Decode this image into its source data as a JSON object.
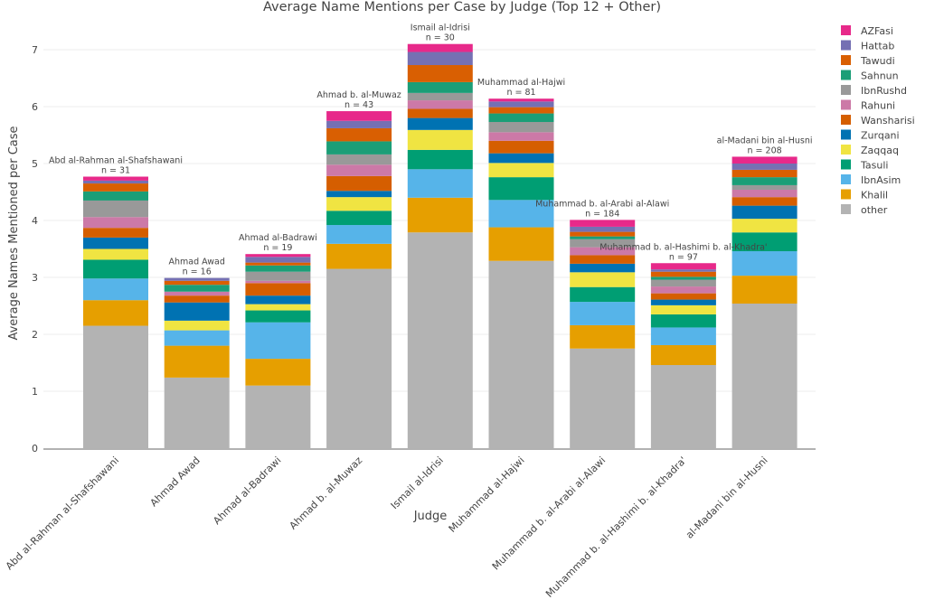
{
  "chart_data": {
    "type": "bar",
    "stacked": true,
    "title": "Average Name Mentions per Case by Judge (Top 12 + Other)",
    "xlabel": "Judge",
    "ylabel": "Average Names Mentioned per Case",
    "ylim": [
      0,
      7.3
    ],
    "yticks": [
      0,
      1,
      2,
      3,
      4,
      5,
      6,
      7
    ],
    "grid": true,
    "legend_position": "top-right",
    "categories": [
      "Abd al-Rahman al-Shafshawani",
      "Ahmad Awad",
      "Ahmad al-Badrawi",
      "Ahmad b. al-Muwaz",
      "Ismail al-Idrisi",
      "Muhammad al-Hajwi",
      "Muhammad b. al-Arabi al-Alawi",
      "Muhammad b. al-Hashimi b. al-Khadra'",
      "al-Madani bin al-Husni"
    ],
    "annotations": [
      {
        "judge": "Abd al-Rahman al-Shafshawani",
        "n_label": "n = 31"
      },
      {
        "judge": "Ahmad Awad",
        "n_label": "n = 16"
      },
      {
        "judge": "Ahmad al-Badrawi",
        "n_label": "n = 19"
      },
      {
        "judge": "Ahmad b. al-Muwaz",
        "n_label": "n = 43"
      },
      {
        "judge": "Ismail al-Idrisi",
        "n_label": "n = 30"
      },
      {
        "judge": "Muhammad al-Hajwi",
        "n_label": "n = 81"
      },
      {
        "judge": "Muhammad b. al-Arabi al-Alawi",
        "n_label": "n = 184"
      },
      {
        "judge": "Muhammad b. al-Hashimi b. al-Khadra'",
        "n_label": "n = 97"
      },
      {
        "judge": "al-Madani bin al-Husni",
        "n_label": "n = 208"
      }
    ],
    "series": [
      {
        "name": "other",
        "color": "#B3B3B3",
        "values": [
          2.15,
          1.24,
          1.1,
          3.15,
          3.79,
          3.29,
          1.75,
          1.46,
          2.54
        ]
      },
      {
        "name": "Khalil",
        "color": "#E69F00",
        "values": [
          0.45,
          0.56,
          0.47,
          0.44,
          0.61,
          0.59,
          0.41,
          0.35,
          0.49
        ]
      },
      {
        "name": "IbnAsim",
        "color": "#56B4E9",
        "values": [
          0.38,
          0.27,
          0.64,
          0.33,
          0.5,
          0.48,
          0.41,
          0.31,
          0.43
        ]
      },
      {
        "name": "Tasuli",
        "color": "#009E73",
        "values": [
          0.33,
          0.0,
          0.21,
          0.25,
          0.34,
          0.4,
          0.26,
          0.23,
          0.33
        ]
      },
      {
        "name": "Zaqqaq",
        "color": "#F0E442",
        "values": [
          0.19,
          0.17,
          0.11,
          0.24,
          0.35,
          0.25,
          0.26,
          0.16,
          0.24
        ]
      },
      {
        "name": "Zurqani",
        "color": "#0072B2",
        "values": [
          0.2,
          0.32,
          0.15,
          0.11,
          0.21,
          0.17,
          0.15,
          0.1,
          0.23
        ]
      },
      {
        "name": "Wansharisi",
        "color": "#D55E00",
        "values": [
          0.17,
          0.12,
          0.22,
          0.26,
          0.16,
          0.22,
          0.15,
          0.11,
          0.15
        ]
      },
      {
        "name": "Rahuni",
        "color": "#CC79A7",
        "values": [
          0.19,
          0.07,
          0.04,
          0.2,
          0.15,
          0.15,
          0.14,
          0.12,
          0.13
        ]
      },
      {
        "name": "IbnRushd",
        "color": "#999999",
        "values": [
          0.29,
          0.0,
          0.16,
          0.18,
          0.13,
          0.18,
          0.14,
          0.12,
          0.08
        ]
      },
      {
        "name": "Sahnun",
        "color": "#1B9E77",
        "values": [
          0.16,
          0.12,
          0.11,
          0.23,
          0.19,
          0.15,
          0.05,
          0.05,
          0.14
        ]
      },
      {
        "name": "Tawudi",
        "color": "#D95F02",
        "values": [
          0.14,
          0.07,
          0.05,
          0.23,
          0.3,
          0.11,
          0.08,
          0.09,
          0.13
        ]
      },
      {
        "name": "Hattab",
        "color": "#7570B3",
        "values": [
          0.05,
          0.05,
          0.1,
          0.13,
          0.23,
          0.1,
          0.09,
          0.04,
          0.11
        ]
      },
      {
        "name": "AZFasi",
        "color": "#E7298A",
        "values": [
          0.07,
          0.0,
          0.05,
          0.17,
          0.14,
          0.05,
          0.12,
          0.11,
          0.12
        ]
      }
    ],
    "legend_order": [
      "AZFasi",
      "Hattab",
      "Tawudi",
      "Sahnun",
      "IbnRushd",
      "Rahuni",
      "Wansharisi",
      "Zurqani",
      "Zaqqaq",
      "Tasuli",
      "IbnAsim",
      "Khalil",
      "other"
    ]
  }
}
